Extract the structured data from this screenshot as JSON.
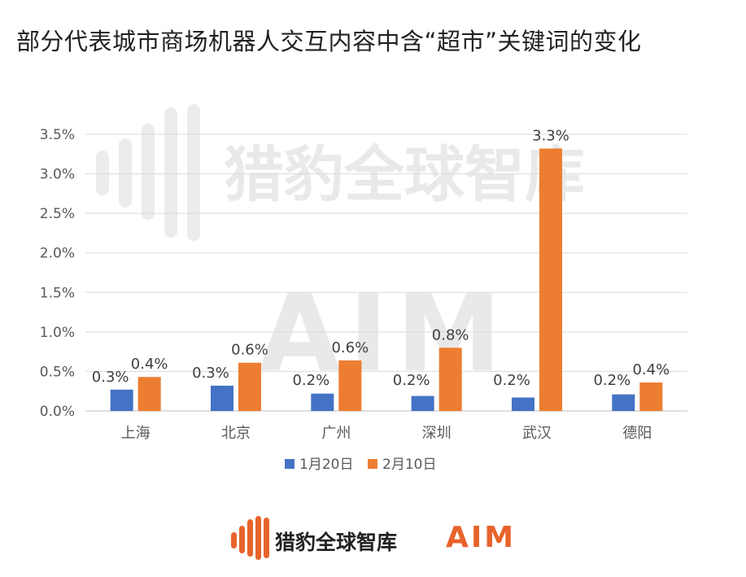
{
  "title": "部分代表城市商场机器人交互内容中含“超市”关键词的变化",
  "watermark": {
    "brand": "猎豹全球智库",
    "aim": "AIM"
  },
  "footer": {
    "brand": "猎豹全球智库",
    "aim": "AIM"
  },
  "colors": {
    "series1": "#4472c4",
    "series2": "#ed7d31",
    "gridline": "#d9d9d9",
    "axis": "#bfbfbf",
    "brand_orange": "#e8632b"
  },
  "chart_data": {
    "type": "bar",
    "title": "部分代表城市商场机器人交互内容中含“超市”关键词的变化",
    "categories": [
      "上海",
      "北京",
      "广州",
      "深圳",
      "武汉",
      "德阳"
    ],
    "series": [
      {
        "name": "1月20日",
        "values": [
          0.27,
          0.32,
          0.22,
          0.19,
          0.17,
          0.21
        ],
        "labels": [
          "0.3%",
          "0.3%",
          "0.2%",
          "0.2%",
          "0.2%",
          "0.2%"
        ]
      },
      {
        "name": "2月10日",
        "values": [
          0.43,
          0.61,
          0.64,
          0.8,
          3.32,
          0.36
        ],
        "labels": [
          "0.4%",
          "0.6%",
          "0.6%",
          "0.8%",
          "3.3%",
          "0.4%"
        ]
      }
    ],
    "yticks": [
      "0.0%",
      "0.5%",
      "1.0%",
      "1.5%",
      "2.0%",
      "2.5%",
      "3.0%",
      "3.5%"
    ],
    "ylim": [
      0,
      3.5
    ],
    "ylabel": "",
    "xlabel": "",
    "grid": true,
    "legend": "bottom"
  }
}
